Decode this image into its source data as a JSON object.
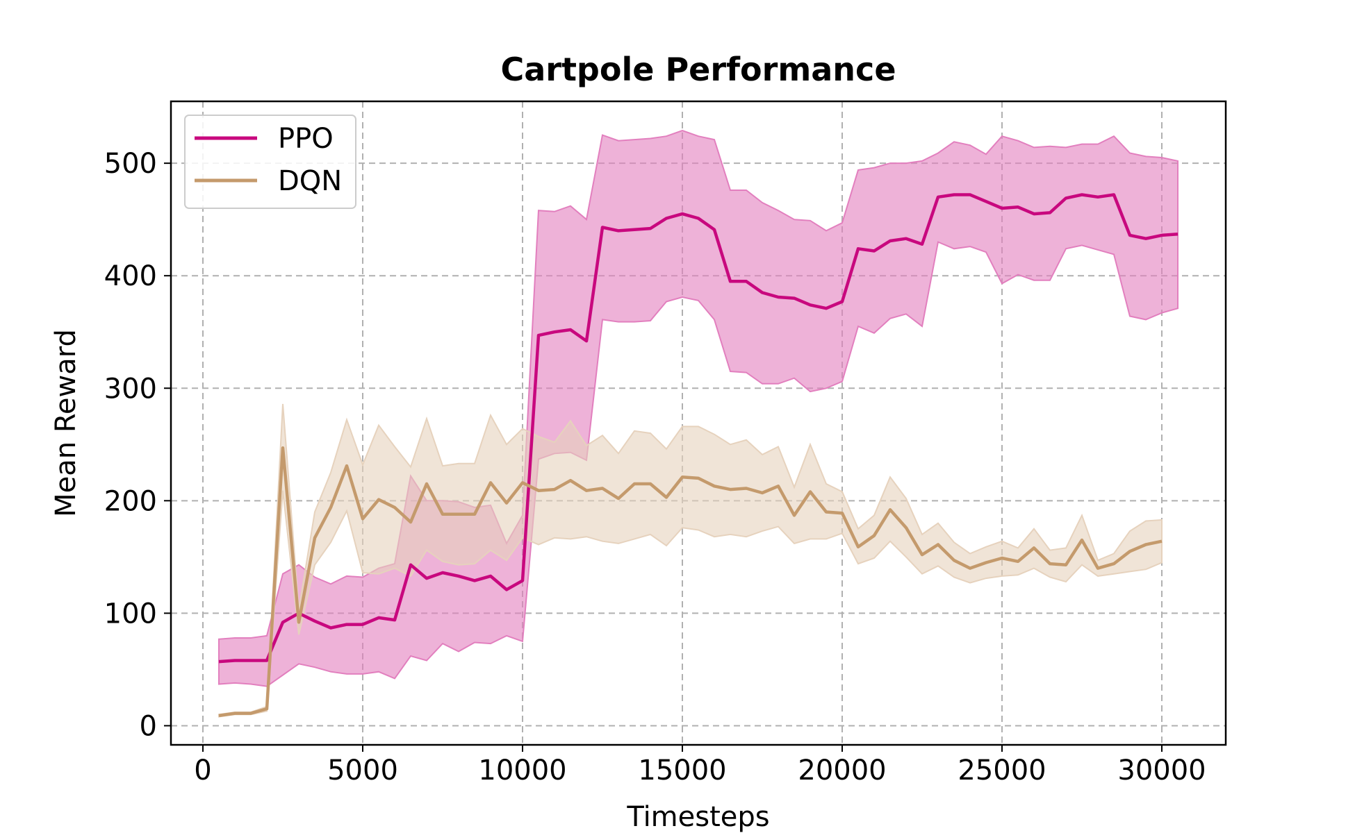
{
  "chart_data": {
    "type": "line",
    "title": "Cartpole Performance",
    "xlabel": "Timesteps",
    "ylabel": "Mean Reward",
    "xlim": [
      -1000,
      32000
    ],
    "ylim": [
      -17,
      555
    ],
    "xticks": [
      0,
      5000,
      10000,
      15000,
      20000,
      25000,
      30000
    ],
    "yticks": [
      0,
      100,
      200,
      300,
      400,
      500
    ],
    "grid": true,
    "legend_position": "top-left",
    "series": [
      {
        "name": "PPO",
        "color": "#c8087e",
        "band_color": "#e27fbe",
        "x": [
          500,
          1000,
          1500,
          2000,
          2500,
          3000,
          3500,
          4000,
          4500,
          5000,
          5500,
          6000,
          6500,
          7000,
          7500,
          8000,
          8500,
          9000,
          9500,
          10000,
          10500,
          11000,
          11500,
          12000,
          12500,
          13000,
          13500,
          14000,
          14500,
          15000,
          15500,
          16000,
          16500,
          17000,
          17500,
          18000,
          18500,
          19000,
          19500,
          20000,
          20500,
          21000,
          21500,
          22000,
          22500,
          23000,
          23500,
          24000,
          24500,
          25000,
          25500,
          26000,
          26500,
          27000,
          27500,
          28000,
          28500,
          29000,
          29500,
          30000,
          30500
        ],
        "mean": [
          57,
          58,
          58,
          58,
          92,
          100,
          93,
          87,
          90,
          90,
          96,
          94,
          143,
          131,
          136,
          133,
          129,
          133,
          121,
          129,
          347,
          350,
          352,
          342,
          443,
          440,
          441,
          442,
          451,
          455,
          451,
          441,
          395,
          395,
          385,
          381,
          380,
          374,
          371,
          377,
          424,
          422,
          431,
          433,
          428,
          470,
          472,
          472,
          466,
          460,
          461,
          455,
          456,
          469,
          472,
          470,
          472,
          436,
          433,
          436,
          437
        ],
        "upper": [
          77,
          78,
          78,
          80,
          135,
          143,
          132,
          126,
          133,
          132,
          140,
          144,
          222,
          200,
          200,
          199,
          194,
          196,
          162,
          187,
          458,
          457,
          462,
          450,
          525,
          520,
          521,
          522,
          524,
          529,
          524,
          521,
          476,
          476,
          465,
          458,
          450,
          449,
          440,
          447,
          494,
          496,
          500,
          500,
          502,
          509,
          519,
          516,
          508,
          524,
          520,
          514,
          515,
          514,
          517,
          517,
          524,
          509,
          506,
          505,
          502
        ],
        "lower": [
          37,
          38,
          37,
          35,
          45,
          55,
          52,
          48,
          46,
          46,
          48,
          42,
          62,
          58,
          73,
          66,
          74,
          73,
          80,
          75,
          237,
          242,
          243,
          236,
          361,
          359,
          359,
          360,
          377,
          381,
          378,
          361,
          315,
          314,
          304,
          304,
          309,
          297,
          300,
          306,
          355,
          349,
          362,
          366,
          355,
          430,
          424,
          426,
          421,
          393,
          401,
          396,
          396,
          424,
          427,
          423,
          419,
          364,
          361,
          367,
          371
        ]
      },
      {
        "name": "DQN",
        "color": "#c49a6c",
        "band_color": "#e6d2bd",
        "x": [
          500,
          1000,
          1500,
          2000,
          2500,
          3000,
          3500,
          4000,
          4500,
          5000,
          5500,
          6000,
          6500,
          7000,
          7500,
          8000,
          8500,
          9000,
          9500,
          10000,
          10500,
          11000,
          11500,
          12000,
          12500,
          13000,
          13500,
          14000,
          14500,
          15000,
          15500,
          16000,
          16500,
          17000,
          17500,
          18000,
          18500,
          19000,
          19500,
          20000,
          20500,
          21000,
          21500,
          22000,
          22500,
          23000,
          23500,
          24000,
          24500,
          25000,
          25500,
          26000,
          26500,
          27000,
          27500,
          28000,
          28500,
          29000,
          29500,
          30000
        ],
        "mean": [
          9,
          11,
          11,
          15,
          247,
          92,
          167,
          194,
          231,
          184,
          201,
          194,
          181,
          215,
          188,
          188,
          188,
          216,
          198,
          216,
          209,
          210,
          218,
          209,
          211,
          202,
          215,
          215,
          203,
          221,
          220,
          213,
          210,
          211,
          207,
          213,
          187,
          208,
          190,
          189,
          159,
          169,
          192,
          176,
          152,
          161,
          147,
          140,
          145,
          149,
          146,
          158,
          144,
          143,
          165,
          140,
          144,
          155,
          161,
          164
        ],
        "upper": [
          10,
          12,
          12,
          17,
          286,
          103,
          190,
          225,
          272,
          232,
          267,
          248,
          230,
          273,
          231,
          233,
          233,
          276,
          250,
          264,
          257,
          252,
          271,
          249,
          258,
          242,
          262,
          260,
          246,
          266,
          266,
          259,
          250,
          254,
          241,
          248,
          212,
          250,
          215,
          208,
          175,
          187,
          221,
          202,
          170,
          180,
          163,
          153,
          159,
          164,
          158,
          175,
          156,
          158,
          187,
          147,
          153,
          173,
          182,
          183
        ],
        "lower": [
          8,
          10,
          10,
          13,
          209,
          81,
          143,
          163,
          191,
          136,
          135,
          140,
          133,
          156,
          146,
          143,
          144,
          156,
          147,
          167,
          161,
          167,
          166,
          168,
          164,
          162,
          166,
          170,
          160,
          176,
          174,
          168,
          170,
          168,
          173,
          177,
          162,
          166,
          166,
          171,
          144,
          149,
          164,
          150,
          135,
          142,
          132,
          127,
          131,
          133,
          134,
          140,
          132,
          128,
          143,
          133,
          135,
          137,
          139,
          145
        ]
      }
    ]
  }
}
